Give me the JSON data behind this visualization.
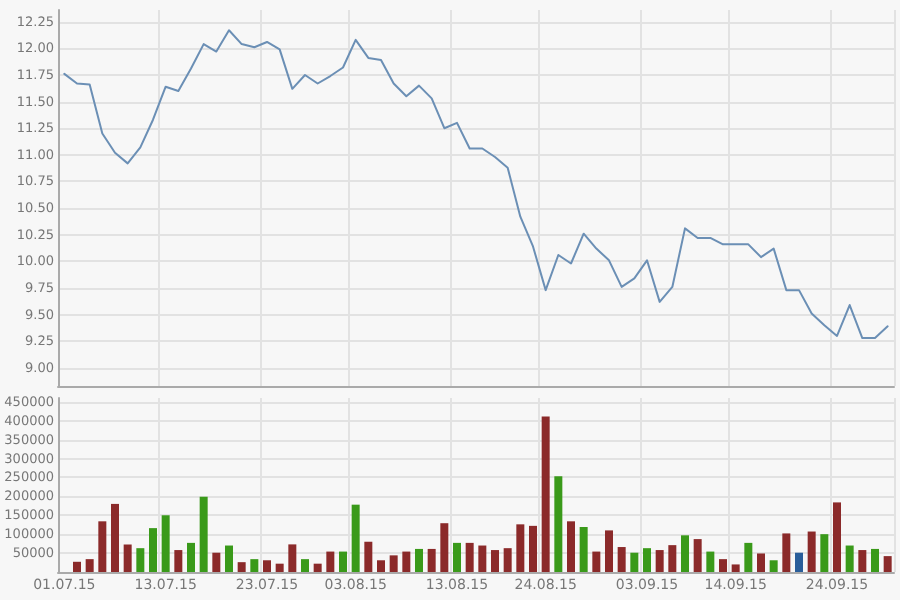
{
  "chart_data": [
    {
      "type": "line",
      "categories": [
        "01.07.15",
        null,
        null,
        null,
        null,
        null,
        null,
        null,
        "13.07.15",
        null,
        null,
        null,
        null,
        null,
        null,
        null,
        "23.07.15",
        null,
        null,
        null,
        null,
        null,
        null,
        "03.08.15",
        null,
        null,
        null,
        null,
        null,
        null,
        null,
        "13.08.15",
        null,
        null,
        null,
        null,
        null,
        null,
        "24.08.15",
        null,
        null,
        null,
        null,
        null,
        null,
        null,
        "03.09.15",
        null,
        null,
        null,
        null,
        null,
        null,
        "14.09.15",
        null,
        null,
        null,
        null,
        null,
        null,
        null,
        "24.09.15",
        null,
        null,
        null,
        null
      ],
      "series": [
        {
          "color": "#6b8fb5",
          "values": [
            11.76,
            11.67,
            11.66,
            11.2,
            11.02,
            10.92,
            11.07,
            11.33,
            11.64,
            11.6,
            11.81,
            12.04,
            11.97,
            12.17,
            12.04,
            12.01,
            12.06,
            11.99,
            11.62,
            11.75,
            11.67,
            11.74,
            11.82,
            12.08,
            11.91,
            11.89,
            11.67,
            11.55,
            11.65,
            11.53,
            11.25,
            11.3,
            11.06,
            11.06,
            10.98,
            10.88,
            10.42,
            10.14,
            9.73,
            10.06,
            9.98,
            10.26,
            10.12,
            10.01,
            9.76,
            9.84,
            10.01,
            9.62,
            9.76,
            10.31,
            10.22,
            10.22,
            10.16,
            10.16,
            10.16,
            10.04,
            10.12,
            9.73,
            9.73,
            9.51,
            9.4,
            9.3,
            9.59,
            9.28,
            9.28,
            9.39
          ]
        }
      ],
      "ylim": [
        8.83,
        12.36
      ],
      "yticks": [
        {
          "value": 9,
          "label": "9.00"
        },
        {
          "value": 9.25,
          "label": "9.25"
        },
        {
          "value": 9.5,
          "label": "9.50"
        },
        {
          "value": 9.75,
          "label": "9.75"
        },
        {
          "value": 10,
          "label": "10.00"
        },
        {
          "value": 10.25,
          "label": "10.25"
        },
        {
          "value": 10.5,
          "label": "10.50"
        },
        {
          "value": 10.75,
          "label": "10.75"
        },
        {
          "value": 11,
          "label": "11.00"
        },
        {
          "value": 11.25,
          "label": "11.25"
        },
        {
          "value": 11.5,
          "label": "11.50"
        },
        {
          "value": 11.75,
          "label": "11.75"
        },
        {
          "value": 12,
          "label": "12.00"
        },
        {
          "value": 12.25,
          "label": "12.25"
        }
      ],
      "grid": true,
      "line_style": "solid",
      "tick_labels": "y"
    },
    {
      "type": "bar",
      "categories": [
        "01.07.15",
        null,
        null,
        null,
        null,
        null,
        null,
        null,
        "13.07.15",
        null,
        null,
        null,
        null,
        null,
        null,
        null,
        "23.07.15",
        null,
        null,
        null,
        null,
        null,
        null,
        "03.08.15",
        null,
        null,
        null,
        null,
        null,
        null,
        null,
        "13.08.15",
        null,
        null,
        null,
        null,
        null,
        null,
        "24.08.15",
        null,
        null,
        null,
        null,
        null,
        null,
        null,
        "03.09.15",
        null,
        null,
        null,
        null,
        null,
        null,
        "14.09.15",
        null,
        null,
        null,
        null,
        null,
        null,
        null,
        "24.09.15",
        null,
        null,
        null,
        null
      ],
      "series": [
        {
          "values": [
            null,
            27000,
            34000,
            134000,
            180000,
            73000,
            63000,
            116000,
            150000,
            58000,
            77000,
            199000,
            51000,
            70000,
            26000,
            34000,
            31000,
            22000,
            73000,
            34000,
            22000,
            54000,
            54000,
            178000,
            80000,
            31000,
            44000,
            54000,
            61000,
            61000,
            129000,
            77000,
            77000,
            70000,
            58000,
            63000,
            126000,
            122000,
            411000,
            253000,
            134000,
            119000,
            54000,
            110000,
            66000,
            51000,
            63000,
            58000,
            71000,
            97000,
            87000,
            54000,
            34000,
            20000,
            77000,
            49000,
            31000,
            102000,
            51000,
            107000,
            100000,
            184000,
            70000,
            58000,
            61000,
            42000
          ],
          "colors": [
            "#8b2a2a",
            "#8b2a2a",
            "#8b2a2a",
            "#8b2a2a",
            "#8b2a2a",
            "#8b2a2a",
            "#3a9a1a",
            "#3a9a1a",
            "#3a9a1a",
            "#8b2a2a",
            "#3a9a1a",
            "#3a9a1a",
            "#8b2a2a",
            "#3a9a1a",
            "#8b2a2a",
            "#3a9a1a",
            "#8b2a2a",
            "#8b2a2a",
            "#8b2a2a",
            "#3a9a1a",
            "#8b2a2a",
            "#8b2a2a",
            "#3a9a1a",
            "#3a9a1a",
            "#8b2a2a",
            "#8b2a2a",
            "#8b2a2a",
            "#8b2a2a",
            "#3a9a1a",
            "#8b2a2a",
            "#8b2a2a",
            "#3a9a1a",
            "#8b2a2a",
            "#8b2a2a",
            "#8b2a2a",
            "#8b2a2a",
            "#8b2a2a",
            "#8b2a2a",
            "#8b2a2a",
            "#3a9a1a",
            "#8b2a2a",
            "#3a9a1a",
            "#8b2a2a",
            "#8b2a2a",
            "#8b2a2a",
            "#3a9a1a",
            "#3a9a1a",
            "#8b2a2a",
            "#8b2a2a",
            "#3a9a1a",
            "#8b2a2a",
            "#3a9a1a",
            "#8b2a2a",
            "#8b2a2a",
            "#3a9a1a",
            "#8b2a2a",
            "#3a9a1a",
            "#8b2a2a",
            "#2a5e9a",
            "#8b2a2a",
            "#3a9a1a",
            "#8b2a2a",
            "#3a9a1a",
            "#8b2a2a",
            "#3a9a1a",
            "#8b2a2a"
          ]
        }
      ],
      "ylim": [
        0,
        460000
      ],
      "yticks": [
        50000,
        100000,
        150000,
        200000,
        250000,
        300000,
        350000,
        400000,
        450000
      ],
      "grid": true
    }
  ]
}
